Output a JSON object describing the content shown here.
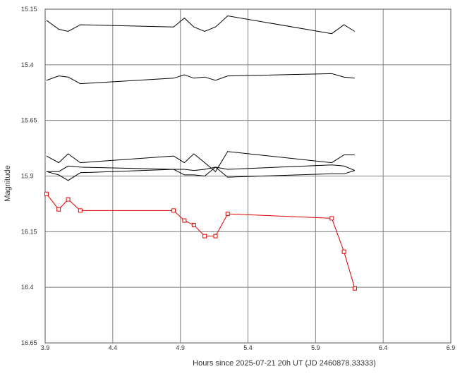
{
  "chart_data": {
    "type": "line",
    "xlabel": "Hours since 2025-07-21 20h UT (JD 2460878.33333)",
    "ylabel": "Magnitude",
    "xlim": [
      3.9,
      6.9
    ],
    "ylim": [
      15.15,
      16.65
    ],
    "y_inverted": true,
    "grid": true,
    "x_ticks": [
      "3.9",
      "4.4",
      "4.9",
      "5.4",
      "5.9",
      "6.4",
      "6.9"
    ],
    "y_ticks": [
      "15.15",
      "15.4",
      "15.65",
      "15.9",
      "16.15",
      "16.4",
      "16.65"
    ],
    "x": [
      3.91,
      4.0,
      4.07,
      4.16,
      4.85,
      4.93,
      5.0,
      5.08,
      5.16,
      5.25,
      6.02,
      6.11,
      6.19
    ],
    "series": [
      {
        "color": "#000000",
        "marker": "none",
        "values": [
          15.2,
          15.24,
          15.25,
          15.22,
          15.23,
          15.19,
          15.23,
          15.25,
          15.23,
          15.18,
          15.26,
          15.22,
          15.25
        ]
      },
      {
        "color": "#000000",
        "marker": "none",
        "values": [
          15.47,
          15.45,
          15.455,
          15.485,
          15.46,
          15.445,
          15.46,
          15.455,
          15.47,
          15.45,
          15.44,
          15.455,
          15.46
        ]
      },
      {
        "color": "#000000",
        "marker": "none",
        "values": [
          15.81,
          15.84,
          15.8,
          15.84,
          15.81,
          15.84,
          15.8,
          15.84,
          15.88,
          15.79,
          15.84,
          15.805,
          15.805
        ]
      },
      {
        "color": "#000000",
        "marker": "none",
        "values": [
          15.88,
          15.895,
          15.92,
          15.885,
          15.87,
          15.895,
          15.895,
          15.9,
          15.86,
          15.905,
          15.89,
          15.89,
          15.875
        ]
      },
      {
        "color": "#000000",
        "marker": "none",
        "values": [
          15.88,
          15.88,
          15.855,
          15.86,
          15.87,
          15.87,
          15.875,
          15.87,
          15.86,
          15.87,
          15.85,
          15.855,
          15.875
        ]
      },
      {
        "color": "#e00000",
        "marker": "square",
        "values": [
          15.98,
          16.05,
          16.005,
          16.055,
          16.055,
          16.1,
          16.12,
          16.17,
          16.17,
          16.07,
          16.09,
          16.24,
          16.405
        ]
      }
    ]
  }
}
